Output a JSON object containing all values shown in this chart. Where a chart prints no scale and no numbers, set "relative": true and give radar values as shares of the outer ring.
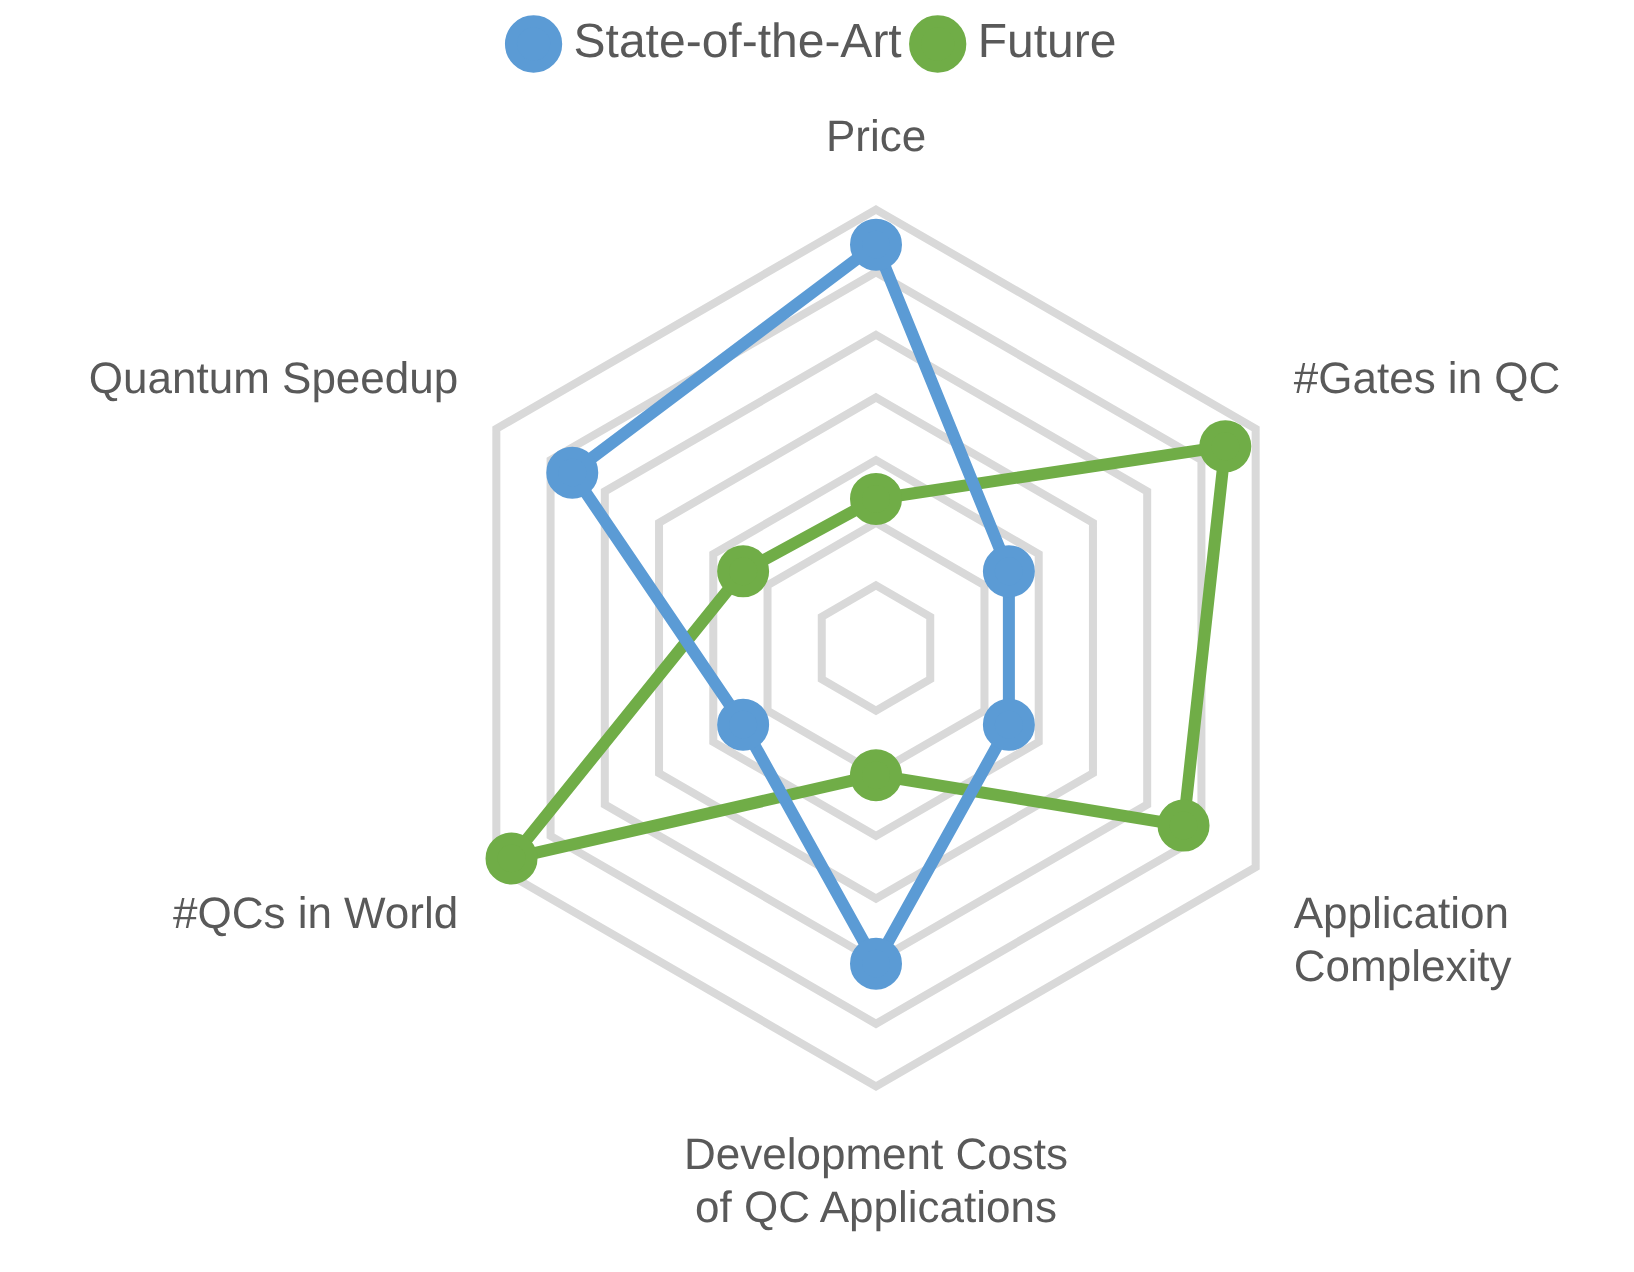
{
  "chart_data": {
    "type": "radar",
    "relative": true,
    "legend": "top",
    "marker": "circle",
    "categories": [
      "Price",
      "#Gates in QC",
      "Application Complexity",
      "Development Costs of QC Applications",
      "#QCs in World",
      "Quantum Speedup"
    ],
    "series": [
      {
        "name": "State-of-the-Art",
        "color": "#5b9bd5",
        "values": [
          0.92,
          0.35,
          0.35,
          0.72,
          0.35,
          0.8
        ]
      },
      {
        "name": "Future",
        "color": "#70ad47",
        "values": [
          0.34,
          0.92,
          0.81,
          0.29,
          0.96,
          0.35
        ]
      }
    ]
  }
}
